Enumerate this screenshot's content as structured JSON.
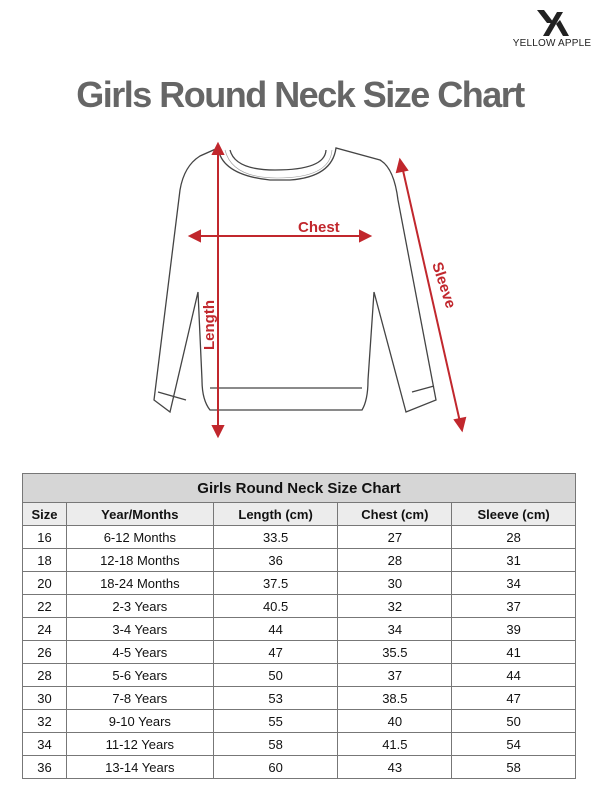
{
  "brand": {
    "name": "YELLOW APPLE"
  },
  "page_title": "Girls Round Neck Size Chart",
  "diagram": {
    "labels": {
      "chest": "Chest",
      "length": "Length",
      "sleeve": "Sleeve"
    },
    "arrow_color": "#c1272d"
  },
  "table": {
    "caption": "Girls Round Neck Size Chart",
    "headers": [
      "Size",
      "Year/Months",
      "Length (cm)",
      "Chest (cm)",
      "Sleeve (cm)"
    ],
    "rows": [
      [
        "16",
        "6-12 Months",
        "33.5",
        "27",
        "28"
      ],
      [
        "18",
        "12-18 Months",
        "36",
        "28",
        "31"
      ],
      [
        "20",
        "18-24 Months",
        "37.5",
        "30",
        "34"
      ],
      [
        "22",
        "2-3 Years",
        "40.5",
        "32",
        "37"
      ],
      [
        "24",
        "3-4 Years",
        "44",
        "34",
        "39"
      ],
      [
        "26",
        "4-5 Years",
        "47",
        "35.5",
        "41"
      ],
      [
        "28",
        "5-6 Years",
        "50",
        "37",
        "44"
      ],
      [
        "30",
        "7-8 Years",
        "53",
        "38.5",
        "47"
      ],
      [
        "32",
        "9-10 Years",
        "55",
        "40",
        "50"
      ],
      [
        "34",
        "11-12 Years",
        "58",
        "41.5",
        "54"
      ],
      [
        "36",
        "13-14 Years",
        "60",
        "43",
        "58"
      ]
    ]
  }
}
